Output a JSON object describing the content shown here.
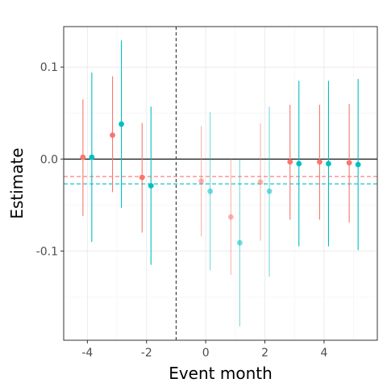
{
  "chart_data": {
    "type": "scatter",
    "xlabel": "Event month",
    "ylabel": "Estimate",
    "xlim": [
      -4.8,
      5.8
    ],
    "ylim": [
      -0.197,
      0.144
    ],
    "x_ticks": [
      -4,
      -2,
      0,
      2,
      4
    ],
    "x_tick_labels": [
      "-4",
      "-2",
      "0",
      "2",
      "4"
    ],
    "y_ticks": [
      -0.1,
      0.0,
      0.1
    ],
    "y_tick_labels": [
      "-0.1",
      "0.0",
      "0.1"
    ],
    "grid": true,
    "legend": "none",
    "reference_vline": -1,
    "reference_hline": 0,
    "series": [
      {
        "color": "#F8766D",
        "mean_line": -0.019,
        "points": [
          {
            "x": -4.15,
            "y": 0.002,
            "lo": -0.062,
            "hi": 0.065,
            "faded": false
          },
          {
            "x": -3.15,
            "y": 0.026,
            "lo": -0.036,
            "hi": 0.09,
            "faded": false
          },
          {
            "x": -2.15,
            "y": -0.02,
            "lo": -0.08,
            "hi": 0.039,
            "faded": false
          },
          {
            "x": -0.15,
            "y": -0.024,
            "lo": -0.084,
            "hi": 0.036,
            "faded": true
          },
          {
            "x": 0.85,
            "y": -0.063,
            "lo": -0.126,
            "hi": 0.0,
            "faded": true
          },
          {
            "x": 1.85,
            "y": -0.025,
            "lo": -0.089,
            "hi": 0.039,
            "faded": true
          },
          {
            "x": 2.85,
            "y": -0.003,
            "lo": -0.066,
            "hi": 0.059,
            "faded": false
          },
          {
            "x": 3.85,
            "y": -0.003,
            "lo": -0.066,
            "hi": 0.059,
            "faded": false
          },
          {
            "x": 4.85,
            "y": -0.004,
            "lo": -0.069,
            "hi": 0.06,
            "faded": false
          }
        ]
      },
      {
        "color": "#00BFC4",
        "mean_line": -0.027,
        "points": [
          {
            "x": -3.85,
            "y": 0.002,
            "lo": -0.09,
            "hi": 0.094,
            "faded": false
          },
          {
            "x": -2.85,
            "y": 0.038,
            "lo": -0.053,
            "hi": 0.129,
            "faded": false
          },
          {
            "x": -1.85,
            "y": -0.029,
            "lo": -0.115,
            "hi": 0.057,
            "faded": false
          },
          {
            "x": 0.15,
            "y": -0.035,
            "lo": -0.121,
            "hi": 0.051,
            "faded": true
          },
          {
            "x": 1.15,
            "y": -0.091,
            "lo": -0.182,
            "hi": 0.0,
            "faded": true
          },
          {
            "x": 2.15,
            "y": -0.035,
            "lo": -0.128,
            "hi": 0.057,
            "faded": true
          },
          {
            "x": 3.15,
            "y": -0.005,
            "lo": -0.095,
            "hi": 0.085,
            "faded": false
          },
          {
            "x": 4.15,
            "y": -0.005,
            "lo": -0.095,
            "hi": 0.085,
            "faded": false
          },
          {
            "x": 5.15,
            "y": -0.006,
            "lo": -0.099,
            "hi": 0.087,
            "faded": false
          }
        ]
      }
    ]
  }
}
